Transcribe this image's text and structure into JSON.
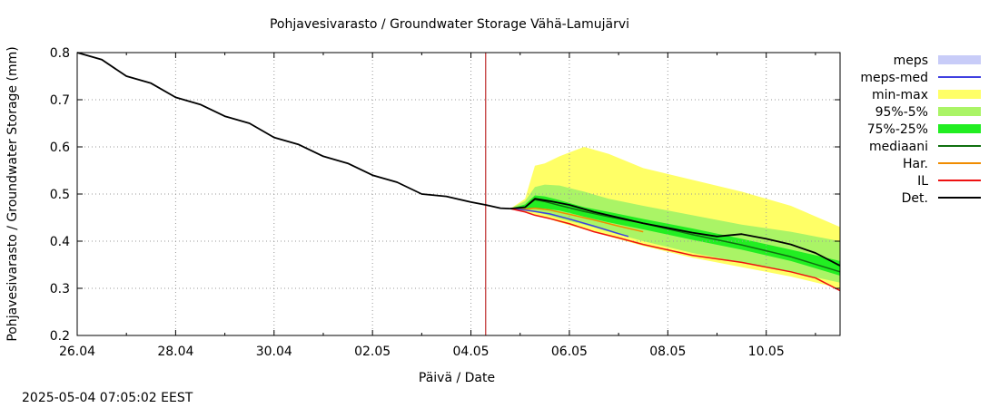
{
  "chart_data": {
    "type": "area",
    "title": "Pohjavesivarasto / Groundwater Storage   Vähä-Lamujärvi",
    "xlabel": "Päivä / Date",
    "ylabel": "Pohjavesivarasto / Groundwater Storage (mm)",
    "ylim": [
      0.2,
      0.8
    ],
    "xlim": [
      0,
      15.5
    ],
    "x_unit": "days since 26.04",
    "yticks": [
      0.2,
      0.3,
      0.4,
      0.5,
      0.6,
      0.7,
      0.8
    ],
    "ytick_labels": [
      "0.2",
      "0.3",
      "0.4",
      "0.5",
      "0.6",
      "0.7",
      "0.8"
    ],
    "xticks": [
      0,
      2,
      4,
      6,
      8,
      10,
      12,
      14
    ],
    "xtick_labels": [
      "26.04",
      "28.04",
      "30.04",
      "02.05",
      "04.05",
      "06.05",
      "08.05",
      "10.05"
    ],
    "grid": true,
    "legend_position": "right",
    "forecast_start_x": 8.3,
    "timestamp": "2025-05-04 07:05:02 EEST",
    "legend": [
      {
        "label": "meps",
        "kind": "band",
        "color": "#c8ccf8"
      },
      {
        "label": "meps-med",
        "kind": "line",
        "color": "#3f3fe0"
      },
      {
        "label": "min-max",
        "kind": "band",
        "color": "#ffff66"
      },
      {
        "label": "95%-5%",
        "kind": "band",
        "color": "#aaf466"
      },
      {
        "label": "75%-25%",
        "kind": "band",
        "color": "#22ee22"
      },
      {
        "label": "mediaani",
        "kind": "line",
        "color": "#107010"
      },
      {
        "label": "Har.",
        "kind": "line",
        "color": "#f08c00"
      },
      {
        "label": "IL",
        "kind": "line",
        "color": "#ee1111"
      },
      {
        "label": "Det.",
        "kind": "line",
        "color": "#000000"
      }
    ],
    "series": [
      {
        "name": "history",
        "color": "#000000",
        "x": [
          0,
          0.5,
          1,
          1.5,
          2,
          2.5,
          3,
          3.5,
          4,
          4.5,
          5,
          5.5,
          6,
          6.5,
          7,
          7.5,
          8,
          8.3,
          8.6,
          8.8
        ],
        "y": [
          0.8,
          0.785,
          0.75,
          0.735,
          0.705,
          0.69,
          0.665,
          0.65,
          0.62,
          0.605,
          0.58,
          0.565,
          0.54,
          0.525,
          0.5,
          0.495,
          0.483,
          0.477,
          0.47,
          0.469
        ]
      },
      {
        "name": "min-max",
        "color": "#ffff66",
        "x": [
          8.8,
          9.1,
          9.3,
          9.5,
          9.8,
          10.3,
          10.8,
          11.5,
          12.5,
          13.5,
          14.5,
          15.5
        ],
        "upper": [
          0.469,
          0.49,
          0.56,
          0.565,
          0.58,
          0.6,
          0.585,
          0.555,
          0.53,
          0.505,
          0.475,
          0.43
        ],
        "lower": [
          0.469,
          0.462,
          0.455,
          0.45,
          0.44,
          0.425,
          0.41,
          0.39,
          0.365,
          0.345,
          0.325,
          0.3
        ]
      },
      {
        "name": "95%-5%",
        "color": "#aaf466",
        "x": [
          8.8,
          9.1,
          9.3,
          9.5,
          9.8,
          10.3,
          10.8,
          11.5,
          12.5,
          13.5,
          14.5,
          15.5
        ],
        "upper": [
          0.469,
          0.485,
          0.515,
          0.52,
          0.518,
          0.505,
          0.49,
          0.475,
          0.455,
          0.435,
          0.42,
          0.4
        ],
        "lower": [
          0.469,
          0.465,
          0.462,
          0.457,
          0.448,
          0.435,
          0.42,
          0.4,
          0.375,
          0.355,
          0.335,
          0.312
        ]
      },
      {
        "name": "75%-25%",
        "color": "#22ee22",
        "x": [
          8.8,
          9.1,
          9.3,
          9.5,
          9.8,
          10.3,
          10.8,
          11.5,
          12.5,
          13.5,
          14.5,
          15.5
        ],
        "upper": [
          0.469,
          0.478,
          0.497,
          0.495,
          0.487,
          0.472,
          0.462,
          0.447,
          0.427,
          0.405,
          0.382,
          0.358
        ],
        "lower": [
          0.469,
          0.468,
          0.47,
          0.469,
          0.465,
          0.452,
          0.44,
          0.425,
          0.403,
          0.382,
          0.358,
          0.327
        ]
      },
      {
        "name": "mediaani",
        "color": "#107010",
        "x": [
          8.8,
          9.1,
          9.3,
          9.5,
          9.8,
          10.3,
          10.8,
          11.5,
          12.5,
          13.5,
          14.5,
          15.5
        ],
        "y": [
          0.469,
          0.472,
          0.488,
          0.484,
          0.476,
          0.463,
          0.452,
          0.438,
          0.414,
          0.392,
          0.367,
          0.335
        ]
      },
      {
        "name": "Har.",
        "color": "#f08c00",
        "x": [
          8.8,
          9.1,
          9.3,
          9.6,
          10.0,
          10.5,
          11.0,
          11.5
        ],
        "y": [
          0.469,
          0.468,
          0.47,
          0.466,
          0.457,
          0.445,
          0.432,
          0.42
        ]
      },
      {
        "name": "meps-med",
        "color": "#3f3fe0",
        "x": [
          8.8,
          9.1,
          9.3,
          9.6,
          10.0,
          10.5,
          11.0,
          11.2
        ],
        "y": [
          0.469,
          0.466,
          0.463,
          0.458,
          0.447,
          0.432,
          0.416,
          0.41
        ]
      },
      {
        "name": "IL",
        "color": "#ee1111",
        "x": [
          8.8,
          9.1,
          9.3,
          9.6,
          10.0,
          10.5,
          11.0,
          11.5,
          12.5,
          13.5,
          14.5,
          15.0,
          15.5
        ],
        "y": [
          0.469,
          0.462,
          0.455,
          0.448,
          0.437,
          0.42,
          0.407,
          0.393,
          0.37,
          0.355,
          0.335,
          0.322,
          0.295
        ]
      },
      {
        "name": "Det.",
        "color": "#000000",
        "x": [
          8.8,
          9.1,
          9.3,
          9.6,
          10.0,
          10.5,
          11.0,
          11.5,
          12.0,
          12.5,
          13.0,
          13.5,
          14.0,
          14.5,
          15.0,
          15.5
        ],
        "y": [
          0.469,
          0.472,
          0.49,
          0.485,
          0.477,
          0.462,
          0.45,
          0.438,
          0.428,
          0.418,
          0.41,
          0.415,
          0.405,
          0.393,
          0.375,
          0.348
        ]
      }
    ]
  }
}
